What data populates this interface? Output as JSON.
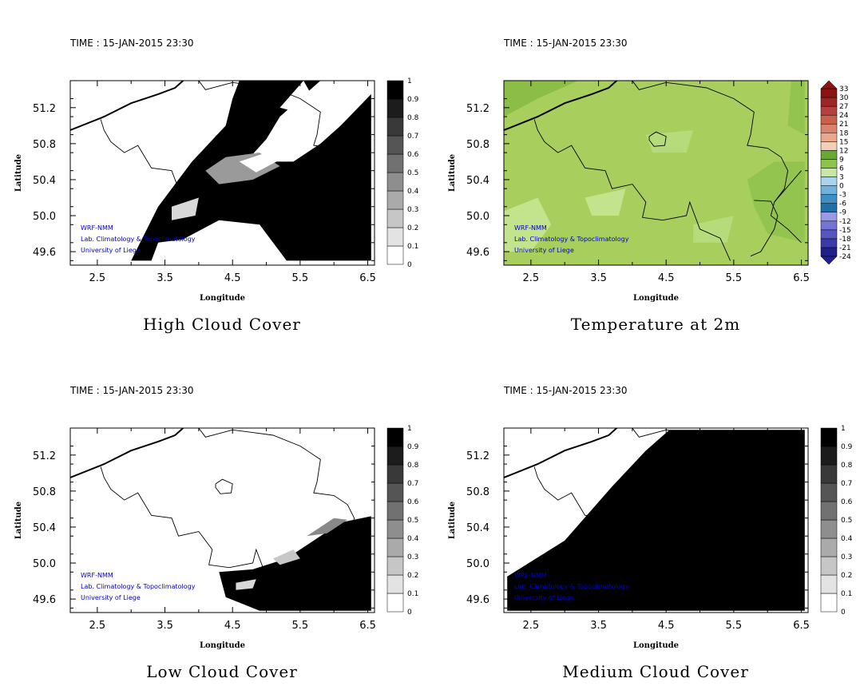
{
  "chart_data": [
    {
      "type": "heatmap",
      "id": "high",
      "time_label": "TIME : 15-JAN-2015 23:30",
      "title": "High Cloud Cover",
      "xlabel": "Longitude",
      "ylabel": "Latitude",
      "xlim": [
        2.1,
        6.6
      ],
      "ylim": [
        49.45,
        51.5
      ],
      "xticks": [
        "2.5",
        "3.5",
        "4.5",
        "5.5",
        "6.5"
      ],
      "yticks": [
        "49.6",
        "50.0",
        "50.4",
        "50.8",
        "51.2"
      ],
      "colorbar": {
        "levels": [
          "0",
          "0.1",
          "0.2",
          "0.3",
          "0.4",
          "0.5",
          "0.6",
          "0.7",
          "0.8",
          "0.9",
          "1"
        ]
      },
      "credits": [
        "WRF-NMM",
        "Lab. Climatology & Topoclimatology",
        "University of Liege"
      ]
    },
    {
      "type": "heatmap",
      "id": "temp",
      "time_label": "TIME : 15-JAN-2015 23:30",
      "title": "Temperature at 2m",
      "xlabel": "Longitude",
      "ylabel": "Latitude",
      "xlim": [
        2.1,
        6.6
      ],
      "ylim": [
        49.45,
        51.5
      ],
      "xticks": [
        "2.5",
        "3.5",
        "4.5",
        "5.5",
        "6.5"
      ],
      "yticks": [
        "49.6",
        "50.0",
        "50.4",
        "50.8",
        "51.2"
      ],
      "colorbar": {
        "levels": [
          "-24",
          "-21",
          "-18",
          "-15",
          "-12",
          "-9",
          "-6",
          "-3",
          "0",
          "3",
          "6",
          "9",
          "12",
          "15",
          "18",
          "21",
          "24",
          "27",
          "30",
          "33"
        ]
      },
      "credits": [
        "WRF-NMM",
        "Lab. Climatology & Topoclimatology",
        "University of Liege"
      ]
    },
    {
      "type": "heatmap",
      "id": "low",
      "time_label": "TIME : 15-JAN-2015 23:30",
      "title": "Low Cloud Cover",
      "xlabel": "Longitude",
      "ylabel": "Latitude",
      "xlim": [
        2.1,
        6.6
      ],
      "ylim": [
        49.45,
        51.5
      ],
      "xticks": [
        "2.5",
        "3.5",
        "4.5",
        "5.5",
        "6.5"
      ],
      "yticks": [
        "49.6",
        "50.0",
        "50.4",
        "50.8",
        "51.2"
      ],
      "colorbar": {
        "levels": [
          "0",
          "0.1",
          "0.2",
          "0.3",
          "0.4",
          "0.5",
          "0.6",
          "0.7",
          "0.8",
          "0.9",
          "1"
        ]
      },
      "credits": [
        "WRF-NMM",
        "Lab. Climatology & Topoclimatology",
        "University of Liege"
      ]
    },
    {
      "type": "heatmap",
      "id": "medium",
      "time_label": "TIME : 15-JAN-2015 23:30",
      "title": "Medium Cloud Cover",
      "xlabel": "Longitude",
      "ylabel": "Latitude",
      "xlim": [
        2.1,
        6.6
      ],
      "ylim": [
        49.45,
        51.5
      ],
      "xticks": [
        "2.5",
        "3.5",
        "4.5",
        "5.5",
        "6.5"
      ],
      "yticks": [
        "49.6",
        "50.0",
        "50.4",
        "50.8",
        "51.2"
      ],
      "colorbar": {
        "levels": [
          "0",
          "0.1",
          "0.2",
          "0.3",
          "0.4",
          "0.5",
          "0.6",
          "0.7",
          "0.8",
          "0.9",
          "1"
        ]
      },
      "credits": [
        "WRF-NMM",
        "Lab. Climatology & Topoclimatology",
        "University of Liege"
      ]
    }
  ],
  "colors": {
    "credit_text": "#0000cc",
    "temp_field": "#a8cf5e",
    "cloud_max": "#000000"
  }
}
